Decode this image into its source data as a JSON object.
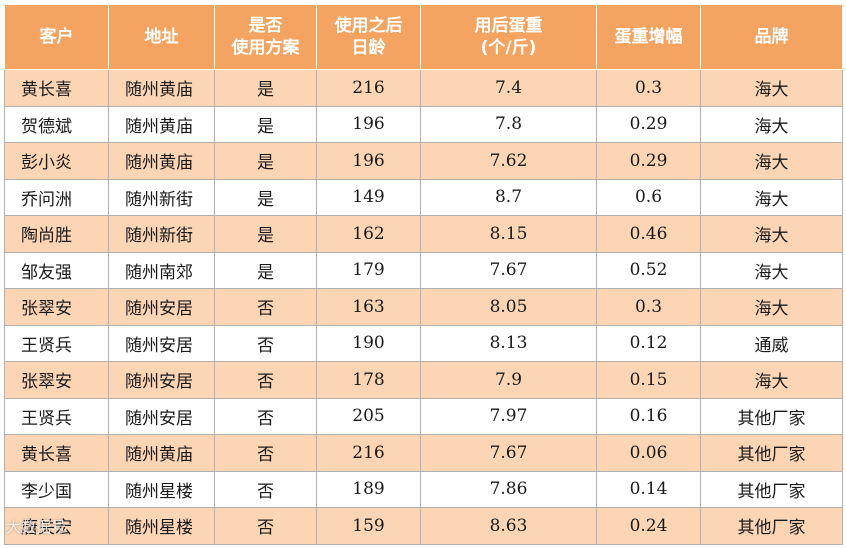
{
  "headers": {
    "customer": "客户",
    "address": "地址",
    "use_plan_line1": "是否",
    "use_plan_line2": "使用方案",
    "age_line1": "使用之后",
    "age_line2": "日龄",
    "weight_line1": "用后蛋重",
    "weight_line2": "(个/斤)",
    "increase": "蛋重增幅",
    "brand": "品牌"
  },
  "rows": [
    [
      "黄长喜",
      "随州黄庙",
      "是",
      "216",
      "7.4",
      "0.3",
      "海大"
    ],
    [
      "贺德斌",
      "随州黄庙",
      "是",
      "196",
      "7.8",
      "0.29",
      "海大"
    ],
    [
      "彭小炎",
      "随州黄庙",
      "是",
      "196",
      "7.62",
      "0.29",
      "海大"
    ],
    [
      "乔问洲",
      "随州新街",
      "是",
      "149",
      "8.7",
      "0.6",
      "海大"
    ],
    [
      "陶尚胜",
      "随州新街",
      "是",
      "162",
      "8.15",
      "0.46",
      "海大"
    ],
    [
      "邹友强",
      "随州南郊",
      "是",
      "179",
      "7.67",
      "0.52",
      "海大"
    ],
    [
      "张翠安",
      "随州安居",
      "否",
      "163",
      "8.05",
      "0.3",
      "海大"
    ],
    [
      "王贤兵",
      "随州安居",
      "否",
      "190",
      "8.13",
      "0.12",
      "通威"
    ],
    [
      "张翠安",
      "随州安居",
      "否",
      "178",
      "7.9",
      "0.15",
      "海大"
    ],
    [
      "王贤兵",
      "随州安居",
      "否",
      "205",
      "7.97",
      "0.16",
      "其他厂家"
    ],
    [
      "黄长喜",
      "随州黄庙",
      "否",
      "216",
      "7.67",
      "0.06",
      "其他厂家"
    ],
    [
      "李少国",
      "随州星楼",
      "否",
      "189",
      "7.86",
      "0.14",
      "其他厂家"
    ],
    [
      "唐关宏",
      "随州星楼",
      "否",
      "159",
      "8.63",
      "0.24",
      "其他厂家"
    ]
  ],
  "watermark": "大数据号",
  "colors": {
    "header_bg": "#f4a460",
    "row_alt": "#fcd5b4"
  }
}
